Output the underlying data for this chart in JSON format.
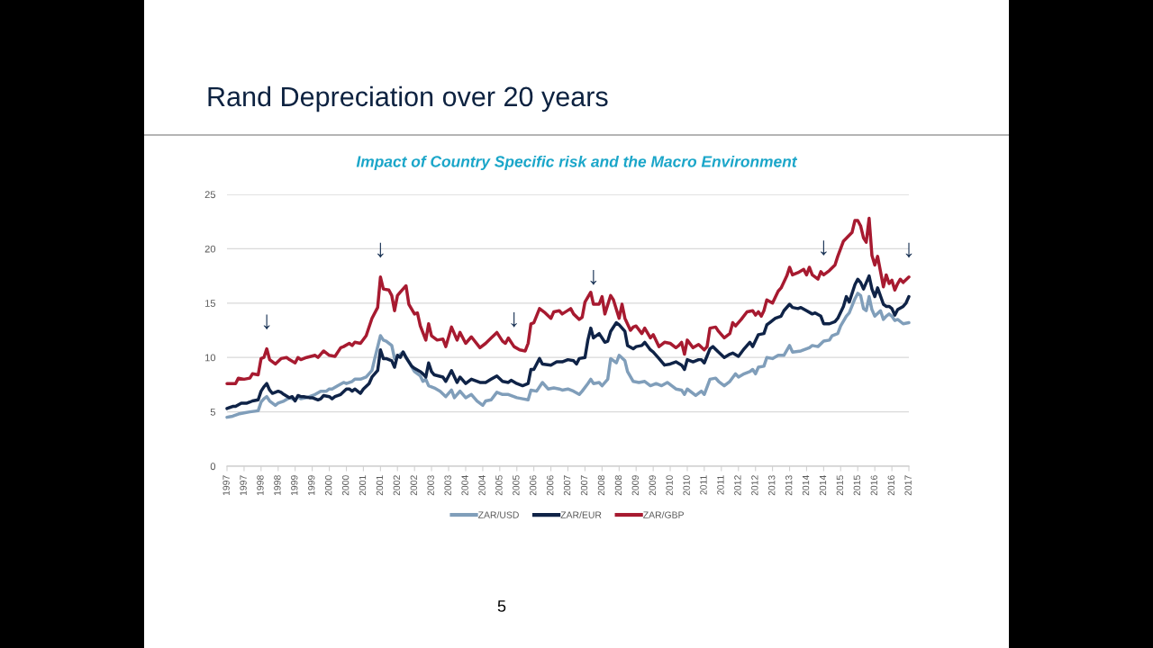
{
  "chart_data": {
    "type": "line",
    "title": "Rand Depreciation over 20 years",
    "subtitle": "Impact of Country Specific risk and the Macro Environment",
    "series": [
      {
        "name": "ZAR/USD",
        "color": "#809eba",
        "x": [
          "1997-06",
          "1997-08",
          "1997-10",
          "1997-12",
          "1998-02",
          "1998-05",
          "1998-06",
          "1998-07",
          "1998-08",
          "1998-09",
          "1998-11",
          "1998-12",
          "1999-02",
          "1999-04",
          "1999-06",
          "1999-07",
          "1999-08",
          "1999-10",
          "2000-01",
          "2000-03",
          "2000-05",
          "2000-06",
          "2000-07",
          "2000-09",
          "2000-11",
          "2000-12",
          "2001-02",
          "2001-03",
          "2001-05",
          "2001-07",
          "2001-09",
          "2001-10",
          "2001-12",
          "2002-01",
          "2002-02",
          "2002-04",
          "2002-05",
          "2002-06",
          "2002-07",
          "2002-08",
          "2002-10",
          "2002-12",
          "2003-02",
          "2003-03",
          "2003-04",
          "2003-05",
          "2003-07",
          "2003-09",
          "2003-11",
          "2004-01",
          "2004-02",
          "2004-04",
          "2004-06",
          "2004-08",
          "2004-10",
          "2004-12",
          "2005-01",
          "2005-03",
          "2005-05",
          "2005-07",
          "2005-09",
          "2005-12",
          "2006-02",
          "2006-04",
          "2006-05",
          "2006-07",
          "2006-09",
          "2006-11",
          "2007-01",
          "2007-03",
          "2007-04",
          "2007-06",
          "2007-08",
          "2007-10",
          "2007-11",
          "2008-01",
          "2008-02",
          "2008-03",
          "2008-05",
          "2008-06",
          "2008-08",
          "2008-09",
          "2008-11",
          "2008-12",
          "2009-02",
          "2009-03",
          "2009-05",
          "2009-07",
          "2009-09",
          "2009-11",
          "2010-01",
          "2010-03",
          "2010-05",
          "2010-08",
          "2010-10",
          "2010-11",
          "2010-12",
          "2011-03",
          "2011-05",
          "2011-06",
          "2011-08",
          "2011-10",
          "2011-11",
          "2012-01",
          "2012-03",
          "2012-05",
          "2012-06",
          "2012-08",
          "2012-10",
          "2012-11",
          "2012-12",
          "2013-01",
          "2013-03",
          "2013-04",
          "2013-06",
          "2013-08",
          "2013-10",
          "2013-12",
          "2014-01",
          "2014-04",
          "2014-07",
          "2014-08",
          "2014-10",
          "2014-12",
          "2015-02",
          "2015-03",
          "2015-05",
          "2015-06",
          "2015-08",
          "2015-09",
          "2015-11",
          "2015-12",
          "2016-01",
          "2016-02",
          "2016-03",
          "2016-04",
          "2016-05",
          "2016-06",
          "2016-08",
          "2016-09",
          "2016-10",
          "2016-11",
          "2016-12",
          "2017-01",
          "2017-02",
          "2017-04",
          "2017-06"
        ],
        "values": [
          4.5,
          4.6,
          4.8,
          4.9,
          5.0,
          5.1,
          5.9,
          6.2,
          6.4,
          6.0,
          5.6,
          5.8,
          6.0,
          6.3,
          6.1,
          6.4,
          6.2,
          6.3,
          6.6,
          6.9,
          6.9,
          7.1,
          7.1,
          7.4,
          7.7,
          7.6,
          7.8,
          8.0,
          8.0,
          8.2,
          8.8,
          9.9,
          12.0,
          11.6,
          11.5,
          11.1,
          9.9,
          10.0,
          10.3,
          10.5,
          9.6,
          8.7,
          8.3,
          7.8,
          8.0,
          7.4,
          7.2,
          6.9,
          6.4,
          7.0,
          6.3,
          6.9,
          6.3,
          6.6,
          6.0,
          5.6,
          6.0,
          6.1,
          6.8,
          6.6,
          6.6,
          6.3,
          6.2,
          6.1,
          7.0,
          6.9,
          7.7,
          7.1,
          7.2,
          7.1,
          7.0,
          7.1,
          6.9,
          6.6,
          6.9,
          7.6,
          8.0,
          7.6,
          7.7,
          7.4,
          8.0,
          9.9,
          9.5,
          10.2,
          9.7,
          8.7,
          7.8,
          7.7,
          7.8,
          7.4,
          7.6,
          7.4,
          7.7,
          7.1,
          7.0,
          6.6,
          7.1,
          6.5,
          6.9,
          6.6,
          8.0,
          8.1,
          7.8,
          7.4,
          7.8,
          8.5,
          8.2,
          8.5,
          8.7,
          8.9,
          8.5,
          9.1,
          9.2,
          10.0,
          9.9,
          10.2,
          10.2,
          11.1,
          10.5,
          10.6,
          10.9,
          11.1,
          11.0,
          11.5,
          11.6,
          12.0,
          12.2,
          12.9,
          13.8,
          14.1,
          15.4,
          15.9,
          15.7,
          14.5,
          14.3,
          15.6,
          14.4,
          13.8,
          14.3,
          13.5,
          13.8,
          14.0,
          13.8,
          13.4,
          13.5,
          13.1,
          13.2
        ]
      },
      {
        "name": "ZAR/EUR",
        "color": "#0f2347",
        "x": [
          "1997-06",
          "1997-08",
          "1997-09",
          "1997-11",
          "1998-01",
          "1998-02",
          "1998-03",
          "1998-05",
          "1998-06",
          "1998-07",
          "1998-08",
          "1998-09",
          "1998-10",
          "1998-11",
          "1998-12",
          "1999-01",
          "1999-02",
          "1999-04",
          "1999-05",
          "1999-06",
          "1999-07",
          "1999-08",
          "1999-09",
          "1999-11",
          "1999-12",
          "2000-02",
          "2000-03",
          "2000-04",
          "2000-06",
          "2000-07",
          "2000-08",
          "2000-10",
          "2000-12",
          "2001-01",
          "2001-02",
          "2001-03",
          "2001-05",
          "2001-06",
          "2001-08",
          "2001-09",
          "2001-11",
          "2001-12",
          "2002-01",
          "2002-02",
          "2002-04",
          "2002-05",
          "2002-06",
          "2002-07",
          "2002-08",
          "2002-09",
          "2002-11",
          "2002-12",
          "2003-02",
          "2003-03",
          "2003-04",
          "2003-05",
          "2003-06",
          "2003-07",
          "2003-10",
          "2003-11",
          "2004-01",
          "2004-03",
          "2004-04",
          "2004-06",
          "2004-08",
          "2004-11",
          "2005-01",
          "2005-03",
          "2005-05",
          "2005-07",
          "2005-09",
          "2005-10",
          "2005-12",
          "2006-02",
          "2006-04",
          "2006-05",
          "2006-06",
          "2006-08",
          "2006-09",
          "2006-12",
          "2007-02",
          "2007-04",
          "2007-06",
          "2007-08",
          "2007-09",
          "2007-10",
          "2007-12",
          "2008-01",
          "2008-02",
          "2008-03",
          "2008-05",
          "2008-07",
          "2008-08",
          "2008-09",
          "2008-11",
          "2008-12",
          "2009-02",
          "2009-03",
          "2009-05",
          "2009-06",
          "2009-08",
          "2009-09",
          "2009-11",
          "2009-12",
          "2010-02",
          "2010-04",
          "2010-06",
          "2010-08",
          "2010-10",
          "2010-11",
          "2010-12",
          "2011-02",
          "2011-04",
          "2011-05",
          "2011-06",
          "2011-08",
          "2011-09",
          "2011-11",
          "2012-01",
          "2012-03",
          "2012-04",
          "2012-06",
          "2012-08",
          "2012-10",
          "2012-11",
          "2013-01",
          "2013-03",
          "2013-04",
          "2013-05",
          "2013-07",
          "2013-09",
          "2013-10",
          "2013-12",
          "2014-01",
          "2014-03",
          "2014-04",
          "2014-06",
          "2014-08",
          "2014-09",
          "2014-11",
          "2014-12",
          "2015-02",
          "2015-04",
          "2015-05",
          "2015-07",
          "2015-08",
          "2015-09",
          "2015-11",
          "2015-12",
          "2016-01",
          "2016-02",
          "2016-04",
          "2016-05",
          "2016-06",
          "2016-07",
          "2016-09",
          "2016-10",
          "2016-11",
          "2016-12",
          "2017-01",
          "2017-02",
          "2017-04",
          "2017-05",
          "2017-06"
        ],
        "values": [
          5.3,
          5.5,
          5.5,
          5.8,
          5.8,
          5.9,
          6.0,
          6.1,
          6.9,
          7.3,
          7.6,
          7.0,
          6.7,
          6.8,
          6.9,
          6.8,
          6.6,
          6.3,
          6.4,
          6.0,
          6.5,
          6.4,
          6.4,
          6.3,
          6.3,
          6.1,
          6.2,
          6.5,
          6.4,
          6.2,
          6.4,
          6.6,
          7.1,
          7.1,
          6.9,
          7.1,
          6.7,
          7.1,
          7.6,
          8.2,
          8.8,
          10.7,
          9.9,
          9.9,
          9.7,
          9.1,
          10.2,
          10.0,
          10.5,
          10.0,
          9.2,
          9.0,
          8.7,
          8.5,
          8.2,
          9.5,
          8.7,
          8.4,
          8.2,
          7.8,
          8.8,
          7.7,
          8.2,
          7.6,
          8.0,
          7.7,
          7.7,
          8.0,
          8.3,
          7.8,
          7.7,
          7.9,
          7.6,
          7.4,
          7.6,
          8.9,
          8.9,
          9.9,
          9.4,
          9.3,
          9.6,
          9.6,
          9.8,
          9.7,
          9.4,
          9.9,
          10.0,
          11.6,
          12.7,
          11.8,
          12.2,
          11.4,
          11.5,
          12.4,
          13.2,
          13.0,
          12.4,
          11.1,
          10.8,
          11.0,
          11.1,
          11.4,
          10.7,
          10.5,
          9.9,
          9.3,
          9.4,
          9.6,
          9.3,
          8.9,
          9.8,
          9.6,
          9.8,
          9.8,
          9.5,
          10.8,
          11.0,
          10.5,
          10.0,
          10.3,
          10.4,
          10.1,
          10.8,
          11.4,
          11.0,
          12.1,
          12.2,
          13.0,
          13.2,
          13.6,
          13.8,
          14.3,
          14.9,
          14.6,
          14.5,
          14.6,
          14.3,
          14.0,
          14.1,
          13.8,
          13.1,
          13.1,
          13.3,
          13.6,
          14.7,
          15.6,
          15.1,
          16.7,
          17.2,
          16.9,
          16.3,
          17.5,
          16.3,
          15.6,
          16.4,
          14.9,
          14.7,
          14.7,
          14.5,
          13.9,
          14.4,
          14.7,
          15.0,
          15.6
        ]
      },
      {
        "name": "ZAR/GBP",
        "color": "#a71a30",
        "x": [
          "1997-06",
          "1997-09",
          "1997-10",
          "1997-12",
          "1998-02",
          "1998-03",
          "1998-05",
          "1998-06",
          "1998-07",
          "1998-08",
          "1998-09",
          "1998-11",
          "1999-01",
          "1999-03",
          "1999-04",
          "1999-06",
          "1999-07",
          "1999-08",
          "1999-10",
          "2000-01",
          "2000-02",
          "2000-04",
          "2000-06",
          "2000-08",
          "2000-10",
          "2000-11",
          "2001-01",
          "2001-02",
          "2001-03",
          "2001-05",
          "2001-07",
          "2001-09",
          "2001-11",
          "2001-12",
          "2002-01",
          "2002-03",
          "2002-04",
          "2002-05",
          "2002-06",
          "2002-07",
          "2002-09",
          "2002-10",
          "2002-12",
          "2003-01",
          "2003-02",
          "2003-04",
          "2003-05",
          "2003-06",
          "2003-08",
          "2003-10",
          "2003-11",
          "2004-01",
          "2004-03",
          "2004-04",
          "2004-06",
          "2004-08",
          "2004-11",
          "2005-01",
          "2005-03",
          "2005-05",
          "2005-07",
          "2005-08",
          "2005-09",
          "2005-11",
          "2006-01",
          "2006-03",
          "2006-04",
          "2006-05",
          "2006-06",
          "2006-08",
          "2006-10",
          "2006-12",
          "2007-01",
          "2007-03",
          "2007-04",
          "2007-07",
          "2007-08",
          "2007-10",
          "2007-11",
          "2007-12",
          "2008-02",
          "2008-03",
          "2008-05",
          "2008-06",
          "2008-07",
          "2008-09",
          "2008-10",
          "2008-12",
          "2009-01",
          "2009-02",
          "2009-04",
          "2009-05",
          "2009-06",
          "2009-08",
          "2009-09",
          "2009-11",
          "2009-12",
          "2010-02",
          "2010-04",
          "2010-06",
          "2010-08",
          "2010-09",
          "2010-10",
          "2010-11",
          "2010-12",
          "2011-02",
          "2011-04",
          "2011-06",
          "2011-07",
          "2011-08",
          "2011-10",
          "2011-11",
          "2012-01",
          "2012-03",
          "2012-04",
          "2012-05",
          "2012-07",
          "2012-09",
          "2012-11",
          "2012-12",
          "2013-01",
          "2013-02",
          "2013-03",
          "2013-04",
          "2013-06",
          "2013-08",
          "2013-09",
          "2013-11",
          "2013-12",
          "2014-01",
          "2014-03",
          "2014-05",
          "2014-06",
          "2014-07",
          "2014-08",
          "2014-10",
          "2014-11",
          "2014-12",
          "2015-02",
          "2015-04",
          "2015-05",
          "2015-07",
          "2015-10",
          "2015-11",
          "2015-12",
          "2016-01",
          "2016-02",
          "2016-03",
          "2016-04",
          "2016-05",
          "2016-06",
          "2016-07",
          "2016-09",
          "2016-10",
          "2016-11",
          "2016-12",
          "2017-01",
          "2017-02",
          "2017-03",
          "2017-04",
          "2017-06"
        ],
        "values": [
          7.6,
          7.6,
          8.1,
          8.0,
          8.1,
          8.5,
          8.4,
          9.9,
          10.0,
          10.8,
          9.8,
          9.4,
          9.9,
          10.0,
          9.8,
          9.5,
          10.0,
          9.8,
          10.0,
          10.2,
          10.0,
          10.6,
          10.2,
          10.1,
          10.9,
          11.0,
          11.3,
          11.1,
          11.4,
          11.3,
          12.0,
          13.6,
          14.6,
          17.4,
          16.3,
          16.2,
          15.7,
          14.3,
          15.7,
          16.0,
          16.6,
          14.9,
          14.0,
          14.1,
          12.9,
          11.6,
          13.1,
          12.0,
          11.6,
          11.7,
          11.0,
          12.8,
          11.6,
          12.3,
          11.3,
          11.9,
          10.9,
          11.3,
          11.8,
          12.3,
          11.5,
          11.3,
          11.8,
          11.0,
          10.7,
          10.6,
          11.3,
          13.1,
          13.2,
          14.5,
          14.1,
          13.6,
          14.2,
          14.3,
          14.0,
          14.5,
          14.0,
          13.5,
          13.7,
          15.1,
          16.0,
          14.9,
          14.9,
          15.6,
          14.0,
          15.7,
          15.3,
          13.6,
          14.9,
          13.6,
          12.5,
          12.8,
          12.9,
          12.2,
          12.7,
          11.8,
          12.1,
          11.0,
          11.4,
          11.3,
          10.9,
          11.1,
          11.4,
          10.3,
          11.6,
          10.9,
          11.2,
          10.7,
          11.0,
          12.7,
          12.8,
          12.4,
          11.8,
          12.2,
          13.2,
          12.9,
          13.5,
          14.2,
          14.3,
          13.9,
          14.2,
          13.8,
          14.3,
          15.3,
          15.0,
          16.1,
          16.4,
          17.5,
          18.3,
          17.6,
          17.8,
          18.1,
          17.6,
          18.3,
          17.6,
          17.2,
          17.9,
          17.6,
          18.0,
          18.5,
          19.3,
          20.7,
          21.5,
          22.6,
          22.6,
          22.1,
          21.0,
          20.6,
          22.8,
          19.4,
          18.5,
          19.3,
          16.5,
          17.6,
          16.8,
          17.1,
          16.2,
          16.8,
          17.2,
          16.9,
          17.4
        ]
      }
    ],
    "xlim": [
      "1997-06",
      "2017-06"
    ],
    "xticks": [
      {
        "value": "1997-06",
        "label": "1997"
      },
      {
        "value": "1997-12",
        "label": "1997"
      },
      {
        "value": "1998-06",
        "label": "1998"
      },
      {
        "value": "1998-12",
        "label": "1998"
      },
      {
        "value": "1999-06",
        "label": "1999"
      },
      {
        "value": "1999-12",
        "label": "1999"
      },
      {
        "value": "2000-06",
        "label": "2000"
      },
      {
        "value": "2000-12",
        "label": "2000"
      },
      {
        "value": "2001-06",
        "label": "2001"
      },
      {
        "value": "2001-12",
        "label": "2001"
      },
      {
        "value": "2002-06",
        "label": "2002"
      },
      {
        "value": "2002-12",
        "label": "2002"
      },
      {
        "value": "2003-06",
        "label": "2003"
      },
      {
        "value": "2003-12",
        "label": "2003"
      },
      {
        "value": "2004-06",
        "label": "2004"
      },
      {
        "value": "2004-12",
        "label": "2004"
      },
      {
        "value": "2005-06",
        "label": "2005"
      },
      {
        "value": "2005-12",
        "label": "2005"
      },
      {
        "value": "2006-06",
        "label": "2006"
      },
      {
        "value": "2006-12",
        "label": "2006"
      },
      {
        "value": "2007-06",
        "label": "2007"
      },
      {
        "value": "2007-12",
        "label": "2007"
      },
      {
        "value": "2008-06",
        "label": "2008"
      },
      {
        "value": "2008-12",
        "label": "2008"
      },
      {
        "value": "2009-06",
        "label": "2009"
      },
      {
        "value": "2009-12",
        "label": "2009"
      },
      {
        "value": "2010-06",
        "label": "2010"
      },
      {
        "value": "2010-12",
        "label": "2010"
      },
      {
        "value": "2011-06",
        "label": "2011"
      },
      {
        "value": "2011-12",
        "label": "2011"
      },
      {
        "value": "2012-06",
        "label": "2012"
      },
      {
        "value": "2012-12",
        "label": "2012"
      },
      {
        "value": "2013-06",
        "label": "2013"
      },
      {
        "value": "2013-12",
        "label": "2013"
      },
      {
        "value": "2014-06",
        "label": "2014"
      },
      {
        "value": "2014-12",
        "label": "2014"
      },
      {
        "value": "2015-06",
        "label": "2015"
      },
      {
        "value": "2015-12",
        "label": "2015"
      },
      {
        "value": "2016-06",
        "label": "2016"
      },
      {
        "value": "2016-12",
        "label": "2016"
      },
      {
        "value": "2017-06",
        "label": "2017"
      }
    ],
    "ylim": [
      0,
      25
    ],
    "yticks": [
      0,
      5,
      10,
      15,
      20,
      25
    ],
    "grid": "y",
    "legend": "bottom",
    "annotations": [
      {
        "text": "↓",
        "x": "1998-08",
        "y": 10.8
      },
      {
        "text": "↓",
        "x": "2001-12",
        "y": 17.4
      },
      {
        "text": "↓",
        "x": "2005-11",
        "y": 11.0
      },
      {
        "text": "↓",
        "x": "2008-03",
        "y": 14.9
      },
      {
        "text": "↓",
        "x": "2014-12",
        "y": 17.6
      },
      {
        "text": "↓",
        "x": "2017-06",
        "y": 17.4
      },
      "5"
    ]
  }
}
